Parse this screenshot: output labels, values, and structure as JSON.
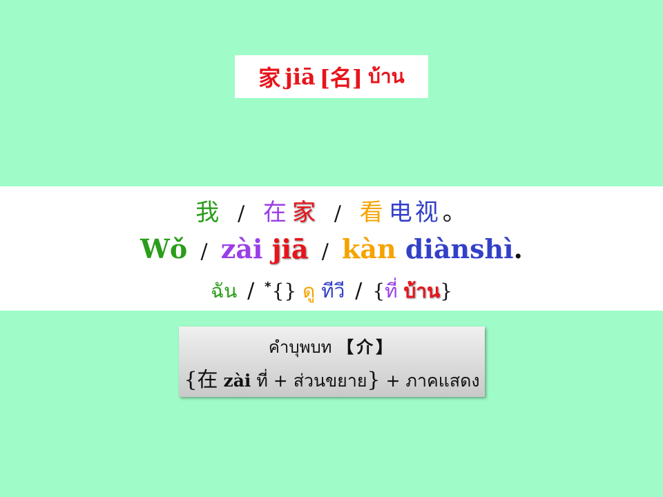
{
  "title": {
    "hanzi": "家",
    "pinyin": "jiā",
    "pos": "[名]",
    "thai": "บ้าน"
  },
  "sentence": {
    "hanzi": {
      "w1": "我",
      "w2a": "在",
      "w2b": "家",
      "w3a": "看",
      "w3b": "电视",
      "end": "。",
      "slash": "/"
    },
    "pinyin": {
      "w1": "Wǒ",
      "w2a": "zài",
      "w2b": "jiā",
      "w3a": "kàn",
      "w3b": "diànshì",
      "end": ".",
      "slash": "/"
    },
    "thai": {
      "w1": "ฉัน",
      "star": "*",
      "empty_brace": "{}",
      "w3a": "ดู",
      "w3b": "ทีวี",
      "open": "{",
      "w2a": "ที่",
      "w2b": "บ้าน",
      "close": "}",
      "slash": "/"
    }
  },
  "rule": {
    "title": "คำบุพบท",
    "bracket_open": "【",
    "label": "介",
    "bracket_close": "】",
    "open": "{",
    "hanzi": "在",
    "pinyin": "zài",
    "thai_prep": "ที่",
    "plus1": "+",
    "complement": "ส่วนขยาย",
    "close": "}",
    "plus2": "+",
    "predicate": "ภาคแสดง"
  },
  "colors": {
    "background": "#9ffcc8",
    "red": "#e8141c",
    "green": "#2a9d1a",
    "purple": "#9a3ee8",
    "orange": "#f5a300",
    "blue": "#3340c8"
  }
}
